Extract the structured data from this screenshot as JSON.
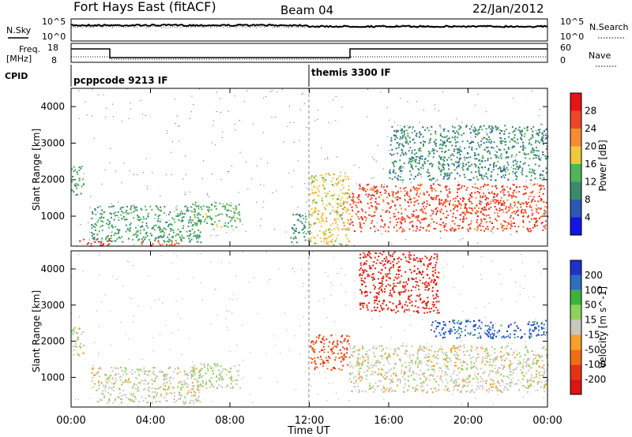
{
  "header": {
    "site": "Fort Hays East (fitACF)",
    "beam": "Beam 04",
    "date": "22/Jan/2012"
  },
  "noise_panel": {
    "left_label": "N.Sky",
    "right_label": "N.Search",
    "left_ticks": [
      "10^5",
      "10^0"
    ],
    "right_ticks": [
      "10^5",
      "10^0"
    ]
  },
  "freq_panel": {
    "left_label": "Freq.",
    "left_unit": "[MHz]",
    "right_label": "Nave",
    "left_ticks": [
      "18",
      "8"
    ],
    "right_ticks": [
      "60",
      "0"
    ]
  },
  "cpid_panel": {
    "label": "CPID",
    "modes": [
      "pcppcode 9213 IF",
      "themis 3300 IF"
    ]
  },
  "colors": {
    "power_scale": [
      "#1414e6",
      "#2a58b4",
      "#3c8a6e",
      "#50b45a",
      "#f0c83c",
      "#f58c32",
      "#f04628",
      "#e61414"
    ],
    "velocity_scale": [
      "#1e32c8",
      "#2d6ebe",
      "#3cb43c",
      "#8cd25a",
      "#c8c8c0",
      "#f5a028",
      "#f06e14",
      "#e63214",
      "#dc1414"
    ]
  },
  "chart_data": [
    {
      "type": "heatmap",
      "title": "Power",
      "xlabel": "",
      "ylabel": "Slant Range [km]",
      "xlim": [
        "00:00",
        "00:00"
      ],
      "ylim": [
        180,
        4500
      ],
      "yticks": [
        "1000",
        "2000",
        "3000",
        "4000"
      ],
      "colorbar": {
        "label": "Power [dB]",
        "ticks": [
          "4",
          "8",
          "12",
          "16",
          "20",
          "24",
          "28"
        ]
      },
      "regions": [
        {
          "t": [
            0.0,
            0.6
          ],
          "r": [
            1600,
            2400
          ],
          "value_db": 12
        },
        {
          "t": [
            0.4,
            2.0
          ],
          "r": [
            200,
            400
          ],
          "value_db": 28
        },
        {
          "t": [
            1.0,
            6.5
          ],
          "r": [
            300,
            1300
          ],
          "value_db": 12
        },
        {
          "t": [
            3.5,
            5.5
          ],
          "r": [
            200,
            350
          ],
          "value_db": 24
        },
        {
          "t": [
            6.0,
            8.5
          ],
          "r": [
            700,
            1400
          ],
          "value_db": 14
        },
        {
          "t": [
            11.0,
            12.0
          ],
          "r": [
            300,
            1100
          ],
          "value_db": 10
        },
        {
          "t": [
            12.0,
            14.0
          ],
          "r": [
            200,
            2200
          ],
          "value_db": 18
        },
        {
          "t": [
            14.0,
            24.0
          ],
          "r": [
            600,
            1900
          ],
          "value_db": 26
        },
        {
          "t": [
            16.0,
            24.0
          ],
          "r": [
            2000,
            3500
          ],
          "value_db": 10
        }
      ]
    },
    {
      "type": "heatmap",
      "title": "Velocity",
      "xlabel": "Time UT",
      "ylabel": "Slant Range [km]",
      "xlim": [
        "00:00",
        "00:00"
      ],
      "ylim": [
        180,
        4500
      ],
      "xticks": [
        "00:00",
        "04:00",
        "08:00",
        "12:00",
        "16:00",
        "20:00",
        "00:00"
      ],
      "yticks": [
        "1000",
        "2000",
        "3000",
        "4000"
      ],
      "colorbar": {
        "label": "Velocity [m s^-1]",
        "ticks": [
          "200",
          "100",
          "50",
          "15",
          "-15",
          "-50",
          "-100",
          "-200"
        ]
      },
      "regions": [
        {
          "t": [
            0.0,
            0.6
          ],
          "r": [
            1600,
            2400
          ],
          "value_ms": 0
        },
        {
          "t": [
            1.0,
            6.5
          ],
          "r": [
            300,
            1300
          ],
          "value_ms": 0
        },
        {
          "t": [
            6.0,
            8.5
          ],
          "r": [
            700,
            1400
          ],
          "value_ms": 30
        },
        {
          "t": [
            12.0,
            14.0
          ],
          "r": [
            1200,
            2200
          ],
          "value_ms": -150
        },
        {
          "t": [
            14.0,
            24.0
          ],
          "r": [
            600,
            1900
          ],
          "value_ms": 0
        },
        {
          "t": [
            18.0,
            24.0
          ],
          "r": [
            2100,
            2600
          ],
          "value_ms": 180
        },
        {
          "t": [
            14.5,
            18.5
          ],
          "r": [
            2800,
            4500
          ],
          "value_ms": -200
        }
      ]
    }
  ]
}
